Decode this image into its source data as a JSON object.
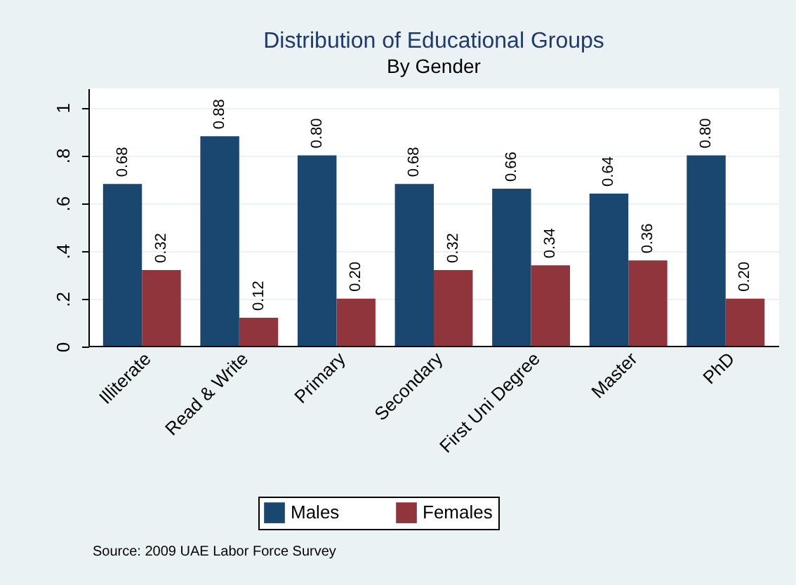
{
  "chart_data": {
    "type": "bar",
    "title": "Distribution of Educational Groups",
    "subtitle": "By Gender",
    "categories": [
      "Illiterate",
      "Read & Write",
      "Primary",
      "Secondary",
      "First Uni Degree",
      "Master",
      "PhD"
    ],
    "series": [
      {
        "name": "Males",
        "color": "#1a476f",
        "values": [
          0.68,
          0.88,
          0.8,
          0.68,
          0.66,
          0.64,
          0.8
        ],
        "value_labels": [
          "0.68",
          "0.88",
          "0.80",
          "0.68",
          "0.66",
          "0.64",
          "0.80"
        ]
      },
      {
        "name": "Females",
        "color": "#90353b",
        "values": [
          0.32,
          0.12,
          0.2,
          0.32,
          0.34,
          0.36,
          0.2
        ],
        "value_labels": [
          "0.32",
          "0.12",
          "0.20",
          "0.32",
          "0.34",
          "0.36",
          "0.20"
        ]
      }
    ],
    "ylim": [
      0,
      1.08
    ],
    "yticks": [
      {
        "value": 0,
        "label": "0"
      },
      {
        "value": 0.2,
        "label": ".2"
      },
      {
        "value": 0.4,
        "label": ".4"
      },
      {
        "value": 0.6,
        "label": ".6"
      },
      {
        "value": 0.8,
        "label": ".8"
      },
      {
        "value": 1,
        "label": "1"
      }
    ],
    "grid": "y",
    "legend": "bottom",
    "annotations": [
      "Source: 2009 UAE Labor Force Survey"
    ]
  }
}
